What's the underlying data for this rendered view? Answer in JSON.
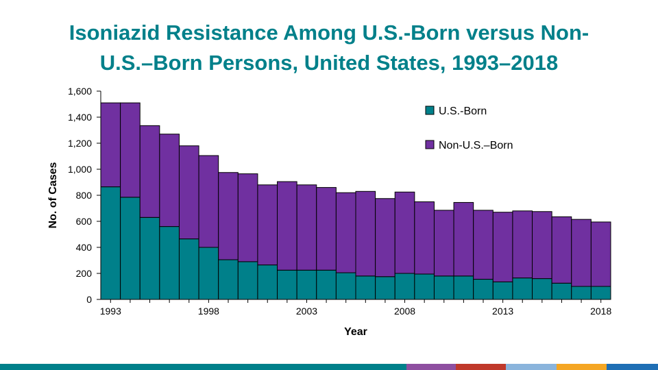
{
  "slide": {
    "title_line1": "Isoniazid Resistance Among U.S.-Born versus Non-",
    "title_line2": "U.S.–Born Persons, United States, 1993–2018",
    "footer_colors": [
      "#00808a",
      "#8e4fa0",
      "#c0392b",
      "#8ab4dc",
      "#f5a623",
      "#1f6fb5"
    ]
  },
  "chart_data": {
    "type": "bar",
    "stacked": true,
    "title": "",
    "xlabel": "Year",
    "ylabel": "No. of Cases",
    "ylim": [
      0,
      1600
    ],
    "yticks": [
      "0",
      "200",
      "400",
      "600",
      "800",
      "1,000",
      "1,200",
      "1,400",
      "1,600"
    ],
    "ytick_values": [
      0,
      200,
      400,
      600,
      800,
      1000,
      1200,
      1400,
      1600
    ],
    "categories": [
      1993,
      1994,
      1995,
      1996,
      1997,
      1998,
      1999,
      2000,
      2001,
      2002,
      2003,
      2004,
      2005,
      2006,
      2007,
      2008,
      2009,
      2010,
      2011,
      2012,
      2013,
      2014,
      2015,
      2016,
      2017,
      2018
    ],
    "xtick_labels": [
      "1993",
      "1998",
      "2003",
      "2008",
      "2013",
      "2018"
    ],
    "legend_position": "top-right",
    "grid": false,
    "series": [
      {
        "name": "U.S.-Born",
        "color": "#00808a",
        "values": [
          865,
          785,
          630,
          560,
          465,
          400,
          305,
          290,
          265,
          225,
          225,
          225,
          205,
          180,
          175,
          200,
          195,
          180,
          180,
          155,
          135,
          165,
          160,
          125,
          100,
          100
        ]
      },
      {
        "name": "Non-U.S.–Born",
        "color": "#7030a0",
        "values": [
          645,
          725,
          705,
          710,
          715,
          705,
          670,
          675,
          615,
          680,
          655,
          635,
          615,
          650,
          600,
          625,
          555,
          505,
          565,
          530,
          535,
          515,
          515,
          510,
          515,
          495
        ]
      }
    ]
  }
}
